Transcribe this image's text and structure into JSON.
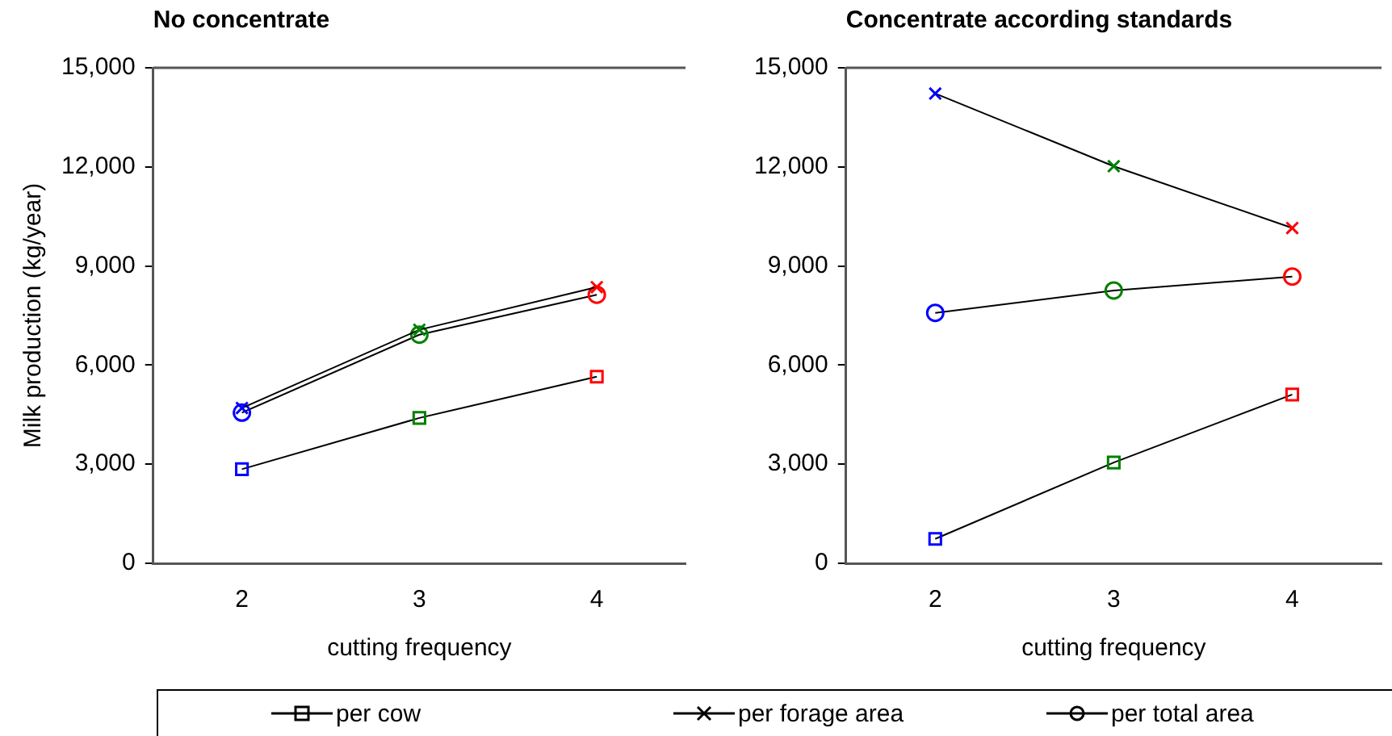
{
  "chart_data": [
    {
      "type": "line",
      "title": "No concentrate",
      "xlabel": "cutting frequency",
      "ylabel": "Milk production (kg/year)",
      "x": [
        2,
        3,
        4
      ],
      "xlim": [
        1.5,
        4.5
      ],
      "xticks": [
        2,
        3,
        4
      ],
      "ylim": [
        0,
        15000
      ],
      "yticks": [
        0,
        {
          "value": 3000,
          "label": "3,000"
        },
        {
          "value": 6000,
          "label": "6,000"
        },
        {
          "value": 9000,
          "label": "9,000"
        },
        {
          "value": 12000,
          "label": "12,000"
        },
        {
          "value": 15000,
          "label": "15,000"
        }
      ],
      "grid": false,
      "legend": "bottom",
      "line_style": "solid",
      "series": [
        {
          "name": "per cow",
          "color": "#000000",
          "colors": [
            "#0000ff",
            "#008000",
            "#ff0000"
          ],
          "marker": "square",
          "values": [
            2850,
            4400,
            5650
          ]
        },
        {
          "name": "per forage area",
          "color": "#000000",
          "colors": [
            "#0000ff",
            "#008000",
            "#ff0000"
          ],
          "marker": "cross",
          "values": [
            4700,
            7070,
            8360
          ]
        },
        {
          "name": "per total area",
          "color": "#000000",
          "colors": [
            "#0000ff",
            "#008000",
            "#ff0000"
          ],
          "marker": "circle",
          "values": [
            4560,
            6920,
            8130
          ]
        }
      ]
    },
    {
      "type": "line",
      "title": "Concentrate according standards",
      "xlabel": "cutting frequency",
      "x": [
        2,
        3,
        4
      ],
      "xlim": [
        1.5,
        4.5
      ],
      "xticks": [
        2,
        3,
        4
      ],
      "ylim": [
        0,
        15000
      ],
      "yticks": [
        0,
        {
          "value": 3000,
          "label": "3,000"
        },
        {
          "value": 6000,
          "label": "6,000"
        },
        {
          "value": 9000,
          "label": "9,000"
        },
        {
          "value": 12000,
          "label": "12,000"
        },
        {
          "value": 15000,
          "label": "15,000"
        }
      ],
      "grid": false,
      "line_style": "solid",
      "series": [
        {
          "color": "#000000",
          "colors": [
            "#0000ff",
            "#008000",
            "#ff0000"
          ],
          "marker": "square",
          "values": [
            740,
            3050,
            5110
          ]
        },
        {
          "color": "#000000",
          "colors": [
            "#0000ff",
            "#008000",
            "#ff0000"
          ],
          "marker": "cross",
          "values": [
            14220,
            12020,
            10150
          ]
        },
        {
          "color": "#000000",
          "colors": [
            "#0000ff",
            "#008000",
            "#ff0000"
          ],
          "marker": "circle",
          "values": [
            7580,
            8260,
            8680
          ]
        }
      ]
    }
  ]
}
